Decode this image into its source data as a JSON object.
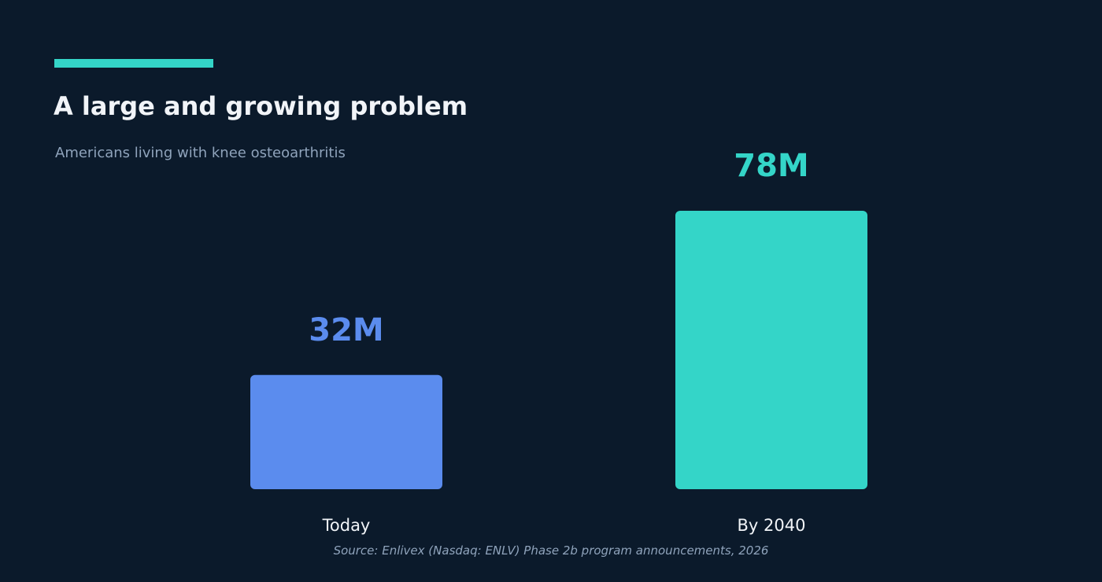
{
  "colors": {
    "background": "#0b1a2b",
    "accent": "#34d5c8",
    "today_bar": "#5b8cee",
    "future_bar": "#34d5c8",
    "title": "#f1f4f8",
    "muted": "#8fa3bb"
  },
  "chart_data": {
    "type": "bar",
    "title": "A large and growing problem",
    "subtitle": "Americans living with knee osteoarthritis",
    "categories": [
      "Today",
      "By 2040"
    ],
    "values": [
      32,
      78
    ],
    "value_labels": [
      "32M",
      "78M"
    ],
    "bar_colors": [
      "#5b8cee",
      "#34d5c8"
    ],
    "ylim": [
      0,
      78
    ],
    "grid": false,
    "legend": "none",
    "source": "Source: Enlivex (Nasdaq: ENLV) Phase 2b program announcements, 2026"
  }
}
